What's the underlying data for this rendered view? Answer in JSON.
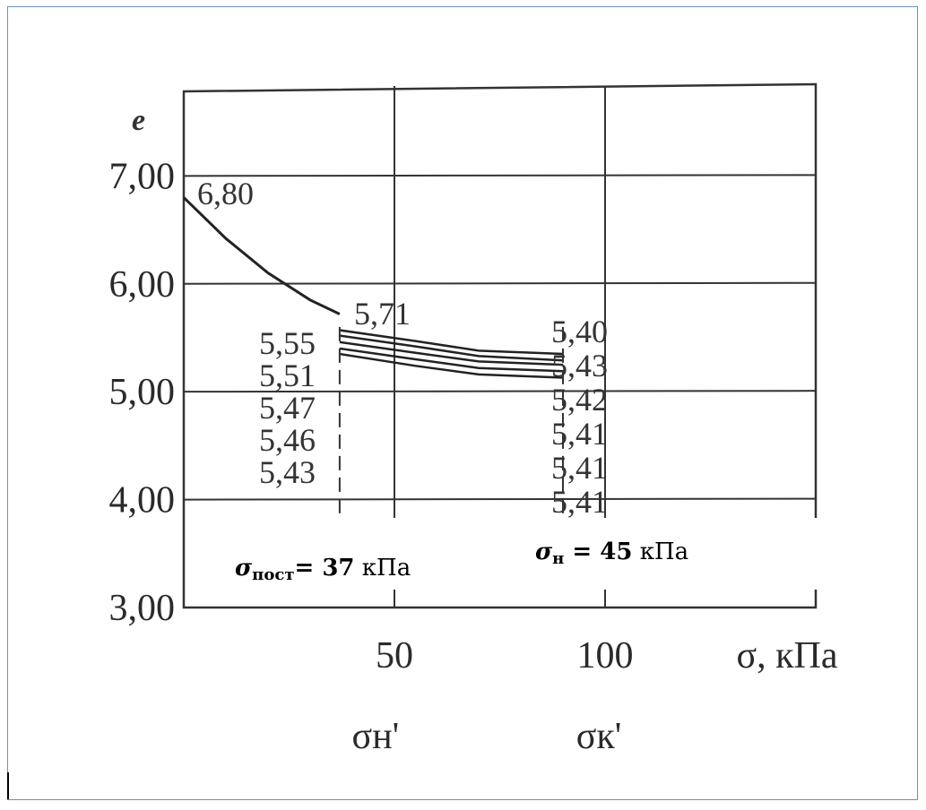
{
  "chart_data": {
    "type": "line",
    "ylabel": "e",
    "xlabel": "σ, кПа",
    "x_tick_labels": [
      "50",
      "100"
    ],
    "y_tick_labels": [
      "7,00",
      "6,00",
      "5,00",
      "4,00",
      "3,00"
    ],
    "xlim": [
      0,
      150
    ],
    "ylim": [
      3,
      7.8
    ],
    "grid": true,
    "x_ticks": [
      50,
      100
    ],
    "y_ticks": [
      7,
      6,
      5,
      4,
      3
    ],
    "sigma_markers": {
      "start": "σн'",
      "end": "σк'",
      "start_x": 37,
      "end_x": 90
    },
    "initial_curve": {
      "label": "6,80",
      "points": [
        [
          0,
          6.8
        ],
        [
          10,
          6.42
        ],
        [
          20,
          6.1
        ],
        [
          30,
          5.85
        ],
        [
          37,
          5.72
        ]
      ]
    },
    "series": [
      {
        "start_label": "5,55",
        "end_label": "5,40",
        "points": [
          [
            37,
            5.57
          ],
          [
            55,
            5.47
          ],
          [
            70,
            5.38
          ],
          [
            90,
            5.35
          ]
        ]
      },
      {
        "start_label": "5,51",
        "end_label": "5,43",
        "points": [
          [
            37,
            5.52
          ],
          [
            55,
            5.42
          ],
          [
            70,
            5.33
          ],
          [
            90,
            5.29
          ]
        ]
      },
      {
        "start_label": "5,47",
        "end_label": "5,42",
        "points": [
          [
            37,
            5.46
          ],
          [
            55,
            5.36
          ],
          [
            70,
            5.28
          ],
          [
            90,
            5.25
          ]
        ]
      },
      {
        "start_label": "5,46",
        "end_label": "5,41",
        "points": [
          [
            37,
            5.4
          ],
          [
            55,
            5.3
          ],
          [
            70,
            5.22
          ],
          [
            90,
            5.19
          ]
        ]
      },
      {
        "start_label": "5,43",
        "end_label": "5,41",
        "points": [
          [
            37,
            5.35
          ],
          [
            55,
            5.24
          ],
          [
            70,
            5.16
          ],
          [
            90,
            5.13
          ]
        ]
      }
    ],
    "extra_end_label": "5,41",
    "mid_label": "5,71"
  },
  "annotations": {
    "left": {
      "sym": "σ",
      "sub": "пост",
      "eq": "= ",
      "num": "37",
      "unit": " кПа"
    },
    "right": {
      "sym": "σ",
      "sub": "н",
      "eq": " = ",
      "num": "45",
      "unit": " кПа"
    }
  }
}
